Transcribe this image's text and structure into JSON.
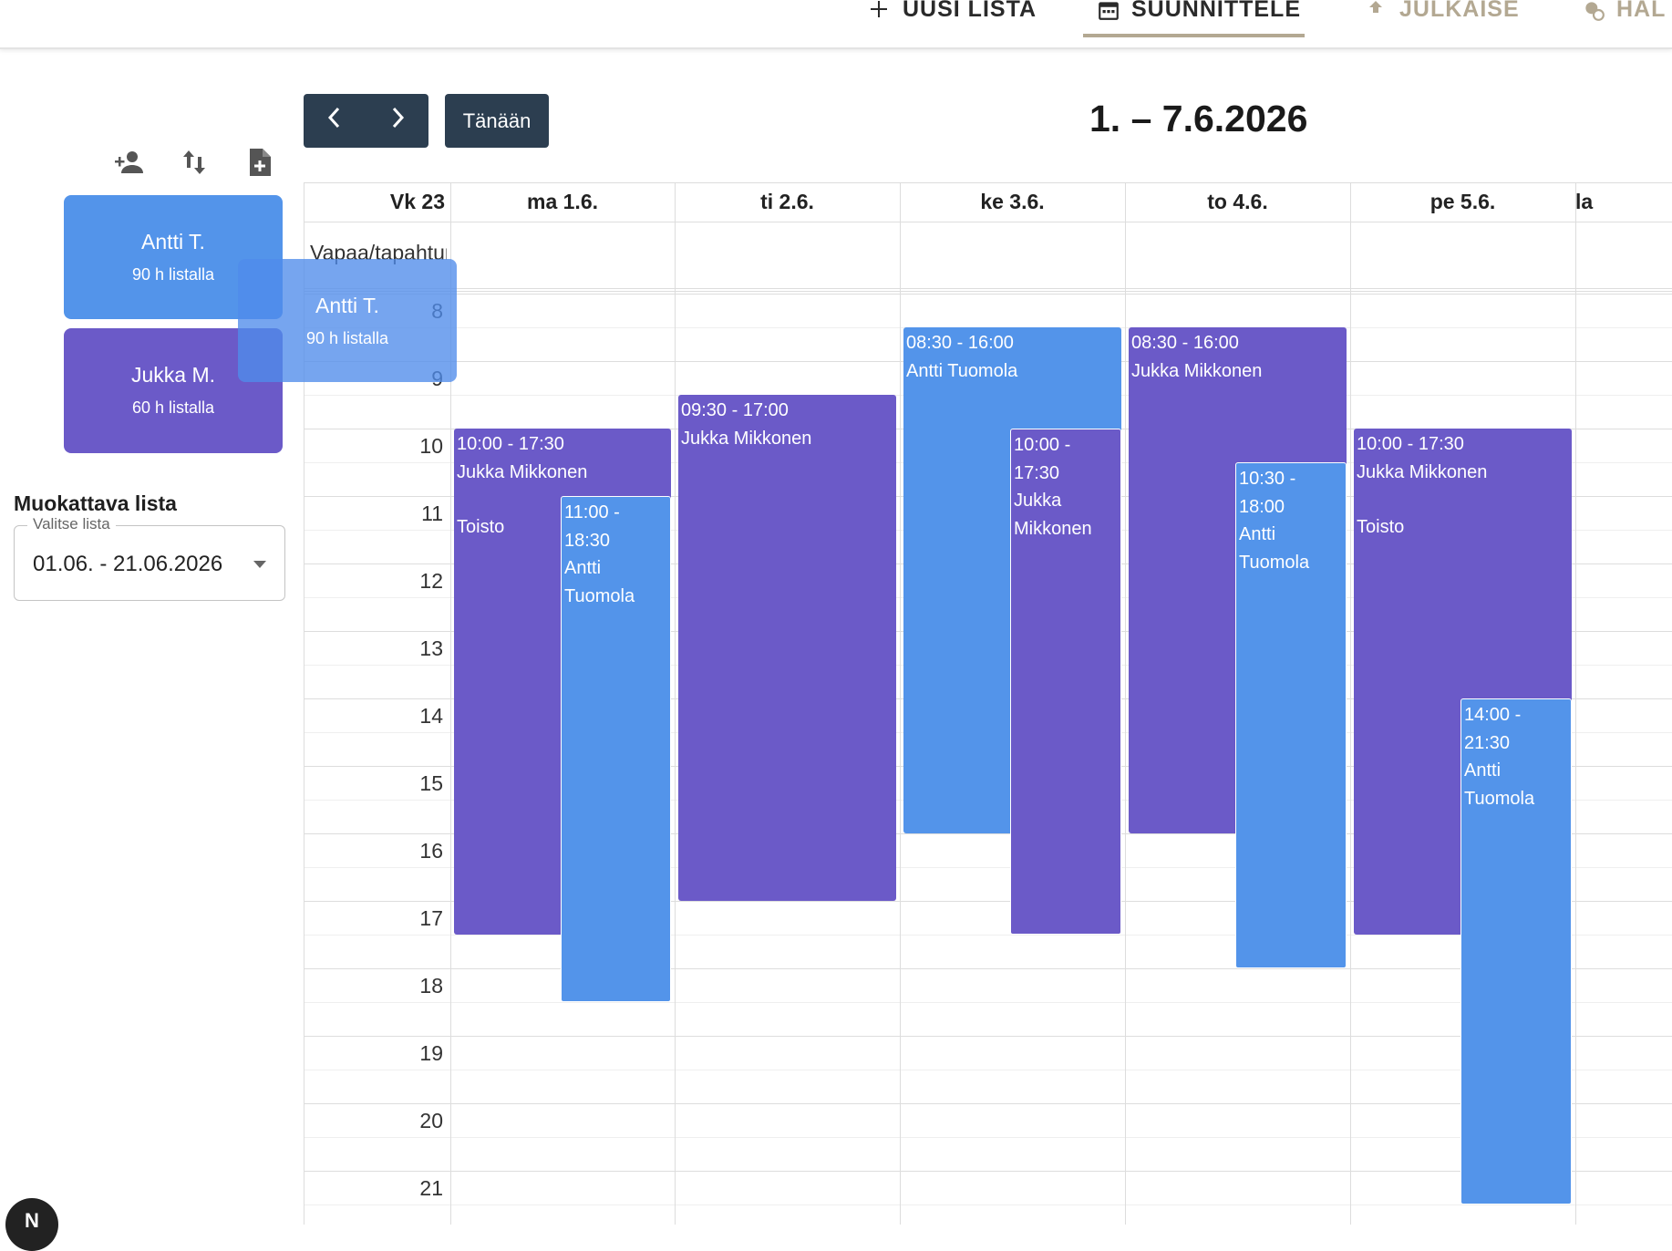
{
  "topnav": {
    "items": [
      {
        "label": "UUSI LISTA",
        "icon": "plus-icon"
      },
      {
        "label": "SUUNNITTELE",
        "icon": "calendar-icon"
      },
      {
        "label": "JULKAISE",
        "icon": "upload-icon"
      },
      {
        "label": "HAL",
        "icon": "user-lock-icon"
      }
    ]
  },
  "sidebar": {
    "tools": [
      {
        "name": "add-person-icon"
      },
      {
        "name": "sort-icon"
      },
      {
        "name": "add-file-icon"
      }
    ],
    "employees": [
      {
        "name": "Antti T.",
        "hours": "90 h listalla",
        "color": "#5394ea"
      },
      {
        "name": "Jukka M.",
        "hours": "60 h listalla",
        "color": "#6b5ac8"
      }
    ],
    "drag_ghost": {
      "name": "Antti T.",
      "hours": "90 h listalla"
    },
    "list_title": "Muokattava lista",
    "select": {
      "label": "Valitse lista",
      "value": "01.06. - 21.06.2026"
    }
  },
  "calendar": {
    "prev_icon": "chevron-left-icon",
    "next_icon": "chevron-right-icon",
    "today_label": "Tänään",
    "title": "1. – 7.6.2026",
    "week_label": "Vk 23",
    "allday_label": "Vapaa/tapahtuma",
    "days": [
      "ma 1.6.",
      "ti 2.6.",
      "ke 3.6.",
      "to 4.6.",
      "pe 5.6.",
      "la"
    ],
    "hours": [
      "8",
      "9",
      "10",
      "11",
      "12",
      "13",
      "14",
      "15",
      "16",
      "17",
      "18",
      "19",
      "20",
      "21"
    ],
    "events": [
      {
        "day": 0,
        "start": "10:00",
        "end": "17:30",
        "time": "10:00 - 17:30",
        "who": "Jukka Mikkonen",
        "note": "Toisto",
        "color": "purple",
        "slot": "left"
      },
      {
        "day": 0,
        "start": "11:00",
        "end": "18:30",
        "time": "11:00 - 18:30",
        "who": "Antti Tuomola",
        "color": "blue",
        "slot": "right"
      },
      {
        "day": 1,
        "start": "09:30",
        "end": "17:00",
        "time": "09:30 - 17:00",
        "who": "Jukka Mikkonen",
        "color": "purple",
        "slot": "full"
      },
      {
        "day": 2,
        "start": "08:30",
        "end": "16:00",
        "time": "08:30 - 16:00",
        "who": "Antti Tuomola",
        "color": "blue",
        "slot": "left"
      },
      {
        "day": 2,
        "start": "10:00",
        "end": "17:30",
        "time": "10:00 - 17:30",
        "who": "Jukka Mikkonen",
        "color": "purple",
        "slot": "right"
      },
      {
        "day": 3,
        "start": "08:30",
        "end": "16:00",
        "time": "08:30 - 16:00",
        "who": "Jukka Mikkonen",
        "color": "purple",
        "slot": "left"
      },
      {
        "day": 3,
        "start": "10:30",
        "end": "18:00",
        "time": "10:30 - 18:00",
        "who": "Antti Tuomola",
        "color": "blue",
        "slot": "right"
      },
      {
        "day": 4,
        "start": "10:00",
        "end": "17:30",
        "time": "10:00 - 17:30",
        "who": "Jukka Mikkonen",
        "note": "Toisto",
        "color": "purple",
        "slot": "left"
      },
      {
        "day": 4,
        "start": "14:00",
        "end": "21:30",
        "time": "14:00 - 21:30",
        "who": "Antti Tuomola",
        "color": "blue",
        "slot": "right"
      }
    ]
  },
  "fab_label": "N"
}
